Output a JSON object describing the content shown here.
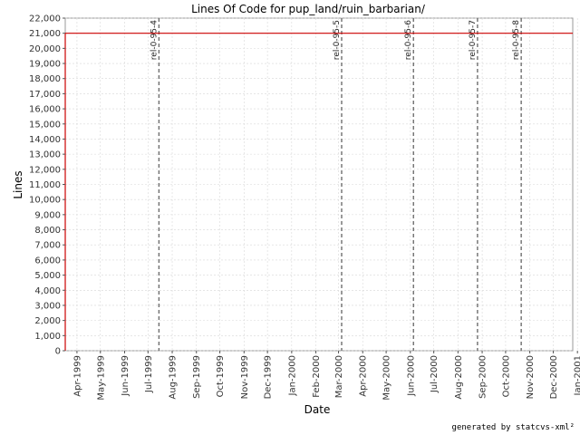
{
  "chart_data": {
    "type": "line",
    "title": "Lines Of Code for pup_land/ruin_barbarian/",
    "xlabel": "Date",
    "ylabel": "Lines",
    "ylim": [
      0,
      22000
    ],
    "xlim": [
      "1999-03-17",
      "2000-12-26"
    ],
    "y_ticks": [
      0,
      1000,
      2000,
      3000,
      4000,
      5000,
      6000,
      7000,
      8000,
      9000,
      10000,
      11000,
      12000,
      13000,
      14000,
      15000,
      16000,
      17000,
      18000,
      19000,
      20000,
      21000,
      22000
    ],
    "y_tick_labels": [
      "0",
      "1,000",
      "2,000",
      "3,000",
      "4,000",
      "5,000",
      "6,000",
      "7,000",
      "8,000",
      "9,000",
      "10,000",
      "11,000",
      "12,000",
      "13,000",
      "14,000",
      "15,000",
      "16,000",
      "17,000",
      "18,000",
      "19,000",
      "20,000",
      "21,000",
      "22,000"
    ],
    "x_ticks": [
      "1999-04-01",
      "1999-05-01",
      "1999-06-01",
      "1999-07-01",
      "1999-08-01",
      "1999-09-01",
      "1999-10-01",
      "1999-11-01",
      "1999-12-01",
      "2000-01-01",
      "2000-02-01",
      "2000-03-01",
      "2000-04-01",
      "2000-05-01",
      "2000-06-01",
      "2000-07-01",
      "2000-08-01",
      "2000-09-01",
      "2000-10-01",
      "2000-11-01",
      "2000-12-01",
      "2001-01-01"
    ],
    "x_tick_labels": [
      "Apr-1999",
      "May-1999",
      "Jun-1999",
      "Jul-1999",
      "Aug-1999",
      "Sep-1999",
      "Oct-1999",
      "Nov-1999",
      "Dec-1999",
      "Jan-2000",
      "Feb-2000",
      "Mar-2000",
      "Apr-2000",
      "May-2000",
      "Jun-2000",
      "Jul-2000",
      "Aug-2000",
      "Sep-2000",
      "Oct-2000",
      "Nov-2000",
      "Dec-2000",
      "Jan-2001"
    ],
    "grid": true,
    "series": [
      {
        "color": "#cc0000",
        "points": [
          {
            "x": "1999-03-17",
            "y": 0
          },
          {
            "x": "1999-03-17",
            "y": 21000
          },
          {
            "x": "2000-12-26",
            "y": 21000
          }
        ]
      }
    ],
    "markers": [
      {
        "label": "rel-0-95-4",
        "x": "1999-07-15"
      },
      {
        "label": "rel-0-95-5",
        "x": "2000-03-05"
      },
      {
        "label": "rel-0-95-6",
        "x": "2000-06-05"
      },
      {
        "label": "rel-0-95-7",
        "x": "2000-08-26"
      },
      {
        "label": "rel-0-95-8",
        "x": "2000-10-21"
      }
    ]
  },
  "footer": "generated by statcvs-xml²"
}
